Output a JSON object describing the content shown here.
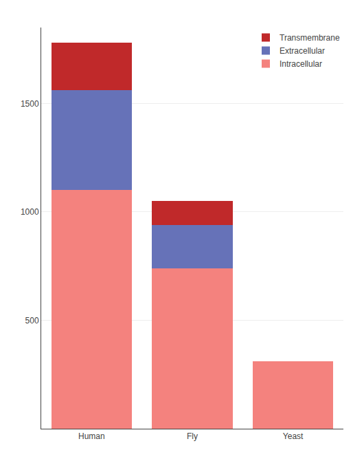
{
  "chart_data": {
    "type": "bar",
    "stacked": true,
    "categories": [
      "Human",
      "Fly",
      "Yeast"
    ],
    "series": [
      {
        "name": "Intracellular",
        "color": "#F4827E",
        "values": [
          1100,
          740,
          310
        ]
      },
      {
        "name": "Extracellular",
        "color": "#6672B8",
        "values": [
          460,
          200,
          0
        ]
      },
      {
        "name": "Transmembrane",
        "color": "#C0292A",
        "values": [
          220,
          110,
          0
        ]
      }
    ],
    "ylim": [
      0,
      1850
    ],
    "yticks": [
      500,
      1000,
      1500
    ],
    "grid": true,
    "legend": "upper right"
  }
}
